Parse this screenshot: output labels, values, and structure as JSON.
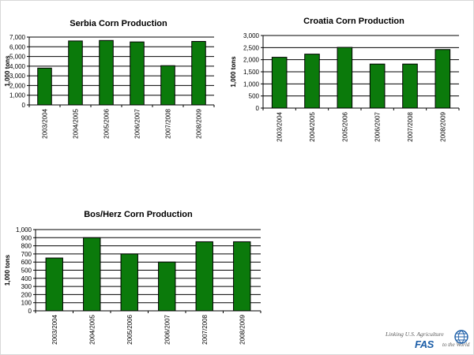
{
  "chart_data": [
    {
      "type": "bar",
      "title": "Serbia Corn Production",
      "xlabel": "",
      "ylabel": "1,000 tons",
      "categories": [
        "2003/2004",
        "2004/2005",
        "2005/2006",
        "2006/2007",
        "2007/2008",
        "2008/2009"
      ],
      "values": [
        3800,
        6600,
        6650,
        6500,
        4050,
        6550
      ],
      "ylim": [
        0,
        7000
      ],
      "yticks": [
        0,
        1000,
        2000,
        3000,
        4000,
        5000,
        6000,
        7000
      ],
      "ytick_labels": [
        "0",
        "1,000",
        "2,000",
        "3,000",
        "4,000",
        "5,000",
        "6,000",
        "7,000"
      ],
      "grid": true,
      "bar_color": "#0b7a0b"
    },
    {
      "type": "bar",
      "title": "Croatia Corn Production",
      "xlabel": "",
      "ylabel": "1,000 tons",
      "categories": [
        "2003/2004",
        "2004/2005",
        "2005/2006",
        "2006/2007",
        "2007/2008",
        "2008/2009"
      ],
      "values": [
        2100,
        2230,
        2510,
        1820,
        1820,
        2420
      ],
      "ylim": [
        0,
        3000
      ],
      "yticks": [
        0,
        500,
        1000,
        1500,
        2000,
        2500,
        3000
      ],
      "ytick_labels": [
        "0",
        "500",
        "1,000",
        "1,500",
        "2,000",
        "2,500",
        "3,000"
      ],
      "grid": true,
      "bar_color": "#0b7a0b"
    },
    {
      "type": "bar",
      "title": "Bos/Herz Corn Production",
      "xlabel": "",
      "ylabel": "1,000 tons",
      "categories": [
        "2003/2004",
        "2004/2005",
        "2005/2006",
        "2006/2007",
        "2007/2008",
        "2008/2009"
      ],
      "values": [
        650,
        900,
        700,
        600,
        850,
        850
      ],
      "ylim": [
        0,
        1000
      ],
      "yticks": [
        0,
        100,
        200,
        300,
        400,
        500,
        600,
        700,
        800,
        900,
        1000
      ],
      "ytick_labels": [
        "0",
        "100",
        "200",
        "300",
        "400",
        "500",
        "600",
        "700",
        "800",
        "900",
        "1,000"
      ],
      "grid": true,
      "bar_color": "#0b7a0b"
    }
  ],
  "logo": {
    "tagline_top": "Linking U.S. Agriculture",
    "acronym": "FAS",
    "tagline_bottom": "to the World"
  }
}
